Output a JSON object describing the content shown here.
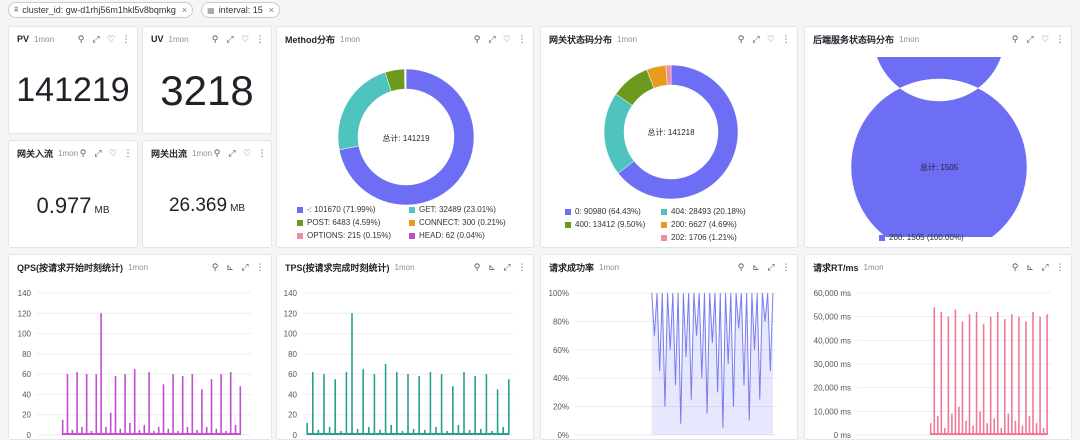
{
  "filters": [
    {
      "label": "cluster_id: gw-d1rhj56m1hkl5v8bqmkg"
    },
    {
      "label": "interval: 15"
    }
  ],
  "period": "1mon",
  "stats": {
    "pv": {
      "title": "PV",
      "value": "141219"
    },
    "uv": {
      "title": "UV",
      "value": "3218"
    },
    "inflow": {
      "title": "网关入流",
      "value": "0.977",
      "unit": "MB"
    },
    "outflow": {
      "title": "网关出流",
      "value": "26.369",
      "unit": "MB"
    }
  },
  "donuts": {
    "method": {
      "title": "Method分布",
      "total_label": "总计: 141219",
      "slices": [
        {
          "label": "-: 101670 (71.99%)",
          "value": 71.99,
          "color": "#6e6ef5"
        },
        {
          "label": "GET: 32489 (23.01%)",
          "value": 23.01,
          "color": "#4fc4bd"
        },
        {
          "label": "POST: 6483 (4.59%)",
          "value": 4.59,
          "color": "#6b9a1f"
        },
        {
          "label": "CONNECT: 300 (0.21%)",
          "value": 0.21,
          "color": "#e89c1e"
        },
        {
          "label": "OPTIONS: 215 (0.15%)",
          "value": 0.15,
          "color": "#f28aa4"
        },
        {
          "label": "HEAD: 62 (0.04%)",
          "value": 0.04,
          "color": "#b950c8"
        }
      ]
    },
    "gateway_status": {
      "title": "网关状态码分布",
      "total_label": "总计: 141218",
      "slices": [
        {
          "label": "0: 90980 (64.43%)",
          "value": 64.43,
          "color": "#6e6ef5"
        },
        {
          "label": "404: 28493 (20.18%)",
          "value": 20.18,
          "color": "#4fc4bd"
        },
        {
          "label": "400: 13412 (9.50%)",
          "value": 9.5,
          "color": "#6b9a1f"
        },
        {
          "label": "200: 6627 (4.69%)",
          "value": 4.69,
          "color": "#e89c1e"
        },
        {
          "label": "202: 1706 (1.21%)",
          "value": 1.21,
          "color": "#f28aa4"
        }
      ]
    },
    "backend_status": {
      "title": "后端服务状态码分布",
      "total_label": "总计: 1505",
      "slices": [
        {
          "label": "200: 1505 (100.00%)",
          "value": 100,
          "color": "#6e6ef5"
        }
      ]
    }
  },
  "charts": {
    "qps": {
      "title": "QPS(按请求开始时刻统计)",
      "color": "#c14fd1",
      "ticks": [
        "140",
        "120",
        "100",
        "80",
        "60",
        "40",
        "20",
        "0"
      ]
    },
    "tps": {
      "title": "TPS(按请求完成时刻统计)",
      "color": "#2a9d8f",
      "ticks": [
        "140",
        "120",
        "100",
        "80",
        "60",
        "40",
        "20",
        "0"
      ]
    },
    "success": {
      "title": "请求成功率",
      "color": "#7b7bf2",
      "ticks": [
        "100%",
        "80%",
        "60%",
        "40%",
        "20%",
        "0%"
      ]
    },
    "rt": {
      "title": "请求RT/ms",
      "color": "#f07a96",
      "ticks": [
        "60,000 ms",
        "50,000 ms",
        "40,000 ms",
        "30,000 ms",
        "20,000 ms",
        "10,000 ms",
        "0 ms"
      ]
    }
  },
  "chart_data": [
    {
      "type": "bar",
      "title": "QPS(按请求开始时刻统计)",
      "ylim": [
        0,
        140
      ],
      "values": [
        15,
        60,
        5,
        62,
        8,
        60,
        4,
        60,
        120,
        8,
        22,
        58,
        6,
        60,
        12,
        65,
        5,
        10,
        62,
        4,
        8,
        50,
        6,
        60,
        4,
        58,
        8,
        60,
        5,
        45,
        8,
        55,
        6,
        60,
        4,
        62,
        10,
        48
      ]
    },
    {
      "type": "bar",
      "title": "TPS(按请求完成时刻统计)",
      "ylim": [
        0,
        140
      ],
      "values": [
        12,
        62,
        5,
        60,
        8,
        55,
        4,
        62,
        120,
        6,
        65,
        8,
        60,
        5,
        70,
        10,
        62,
        4,
        60,
        6,
        58,
        5,
        62,
        8,
        60,
        4,
        48,
        10,
        62,
        5,
        58,
        6,
        60,
        4,
        45,
        8,
        55
      ]
    },
    {
      "type": "area",
      "title": "请求成功率",
      "ylim": [
        0,
        100
      ],
      "values": [
        100,
        70,
        100,
        45,
        100,
        20,
        100,
        60,
        100,
        35,
        100,
        8,
        100,
        55,
        100,
        25,
        100,
        70,
        100,
        40,
        100,
        15,
        100,
        65,
        100,
        30,
        100,
        5,
        100,
        50,
        100,
        20,
        100,
        75,
        100,
        35,
        100,
        10,
        100,
        60,
        100,
        25,
        100,
        80,
        100,
        45,
        100
      ]
    },
    {
      "type": "bar",
      "title": "请求RT/ms",
      "ylim": [
        0,
        60000
      ],
      "values": [
        5000,
        54000,
        8000,
        52000,
        3000,
        50000,
        9000,
        53000,
        12000,
        48000,
        6000,
        51000,
        4000,
        52000,
        10000,
        47000,
        5000,
        50000,
        7000,
        52000,
        3000,
        49000,
        9000,
        51000,
        6000,
        50000,
        4000,
        48000,
        8000,
        52000,
        5000,
        50000,
        3000,
        51000
      ]
    }
  ]
}
